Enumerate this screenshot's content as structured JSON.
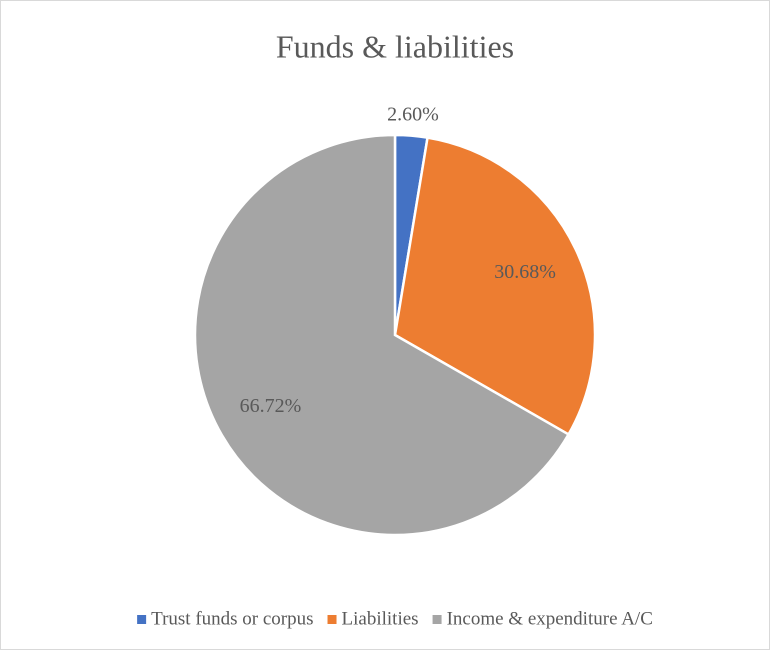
{
  "chart_data": {
    "type": "pie",
    "title": "Funds & liabilities",
    "categories": [
      "Trust funds or corpus",
      "Liabilities",
      "Income & expenditure A/C"
    ],
    "values": [
      2.6,
      30.68,
      66.72
    ],
    "value_labels": [
      "2.60%",
      "30.68%",
      "66.72%"
    ],
    "colors": [
      "#4472c4",
      "#ed7d31",
      "#a5a5a5"
    ],
    "legend": "bottom"
  }
}
